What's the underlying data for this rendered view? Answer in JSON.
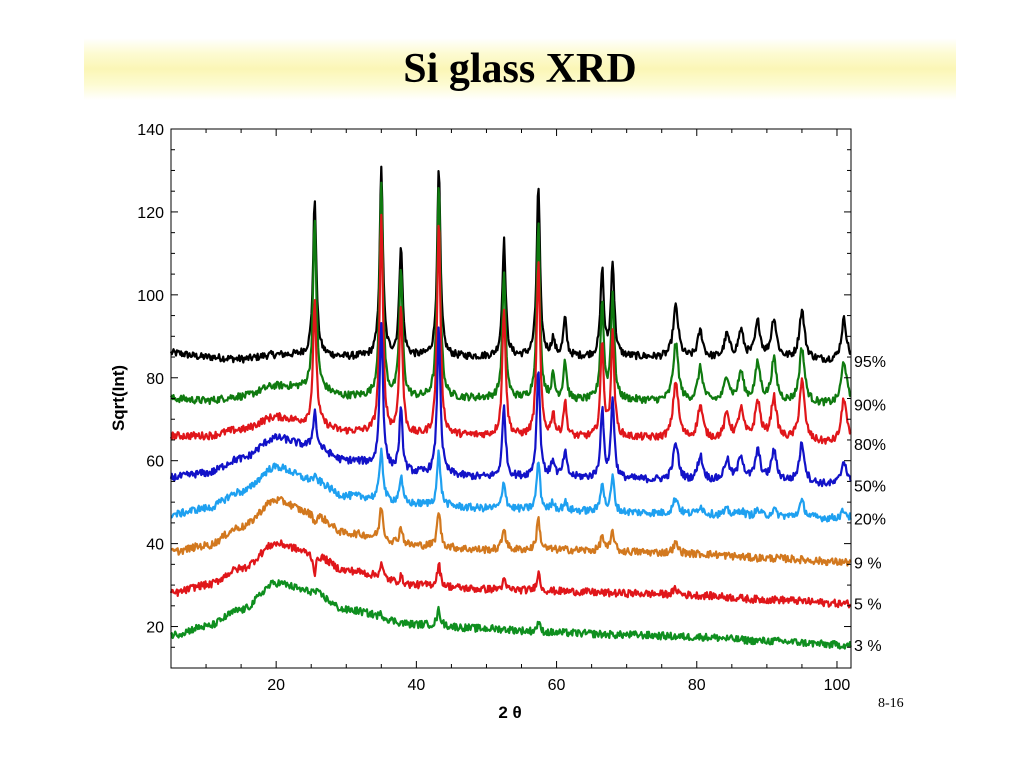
{
  "slide": {
    "title": "Si glass XRD",
    "page_number": "8-16"
  },
  "chart_data": {
    "type": "line",
    "title": "",
    "xlabel": "2 θ",
    "ylabel": "Sqrt(Int)",
    "xlim": [
      5,
      102
    ],
    "ylim": [
      10,
      140
    ],
    "x_ticks": [
      20,
      40,
      60,
      80,
      100
    ],
    "y_ticks": [
      20,
      40,
      60,
      80,
      100,
      120,
      140
    ],
    "grid": false,
    "legend": "right, labels at the end of each trace",
    "peak_positions": [
      25.5,
      35.0,
      37.8,
      43.2,
      52.5,
      57.4,
      59.5,
      61.2,
      66.5,
      68.0,
      77.0,
      80.5,
      84.3,
      86.3,
      88.7,
      91.0,
      95.0,
      101.0
    ],
    "series": [
      {
        "name": "95%",
        "color": "#000000",
        "x": [
          5,
          10,
          15,
          20,
          25,
          30,
          40,
          50,
          60,
          70,
          80,
          90,
          102
        ],
        "y": [
          86,
          85,
          84.5,
          85.5,
          85.5,
          85,
          85,
          85,
          85,
          85,
          84.5,
          84.5,
          84
        ],
        "peaks": [
          [
            25.5,
            123
          ],
          [
            35.0,
            130
          ],
          [
            37.8,
            112
          ],
          [
            43.2,
            130
          ],
          [
            52.5,
            113
          ],
          [
            57.4,
            126
          ],
          [
            59.5,
            89
          ],
          [
            61.2,
            94
          ],
          [
            66.5,
            106
          ],
          [
            68.0,
            108
          ],
          [
            77.0,
            97
          ],
          [
            80.5,
            91
          ],
          [
            84.3,
            90
          ],
          [
            86.3,
            91
          ],
          [
            88.7,
            93
          ],
          [
            91.0,
            94
          ],
          [
            95.0,
            96
          ],
          [
            101.0,
            94
          ]
        ]
      },
      {
        "name": "90%",
        "color": "#0f7a0f",
        "x": [
          5,
          10,
          15,
          20,
          25,
          30,
          40,
          50,
          60,
          70,
          80,
          90,
          102
        ],
        "y": [
          75,
          74.5,
          75.5,
          78,
          77.5,
          75.5,
          75,
          75,
          74.5,
          74.5,
          74,
          74,
          73.5
        ],
        "peaks": [
          [
            25.5,
            118
          ],
          [
            35.0,
            127
          ],
          [
            37.8,
            106
          ],
          [
            43.2,
            126
          ],
          [
            52.5,
            105
          ],
          [
            57.4,
            117
          ],
          [
            59.5,
            80
          ],
          [
            61.2,
            84
          ],
          [
            66.5,
            98
          ],
          [
            68.0,
            100
          ],
          [
            77.0,
            88
          ],
          [
            80.5,
            82
          ],
          [
            84.3,
            80
          ],
          [
            86.3,
            81
          ],
          [
            88.7,
            83
          ],
          [
            91.0,
            84
          ],
          [
            95.0,
            87
          ],
          [
            101.0,
            84
          ]
        ]
      },
      {
        "name": "80%",
        "color": "#e0161a",
        "x": [
          5,
          10,
          15,
          20,
          25,
          30,
          40,
          50,
          60,
          70,
          80,
          90,
          102
        ],
        "y": [
          66,
          66,
          67.5,
          70.5,
          69,
          67,
          66,
          66,
          65.5,
          65.5,
          65,
          65,
          64
        ],
        "peaks": [
          [
            25.5,
            98
          ],
          [
            35.0,
            118
          ],
          [
            37.8,
            97
          ],
          [
            43.2,
            118
          ],
          [
            52.5,
            97
          ],
          [
            57.4,
            108
          ],
          [
            59.5,
            71
          ],
          [
            61.2,
            74
          ],
          [
            66.5,
            88
          ],
          [
            68.0,
            90
          ],
          [
            77.0,
            79
          ],
          [
            80.5,
            73
          ],
          [
            84.3,
            71
          ],
          [
            86.3,
            72
          ],
          [
            88.7,
            74
          ],
          [
            91.0,
            75
          ],
          [
            95.0,
            79
          ],
          [
            101.0,
            75
          ]
        ]
      },
      {
        "name": "50%",
        "color": "#1212c8",
        "x": [
          5,
          10,
          15,
          20,
          25,
          30,
          40,
          50,
          60,
          70,
          80,
          90,
          102
        ],
        "y": [
          56,
          57,
          60.5,
          65.5,
          63.5,
          60,
          57,
          56,
          56,
          55.5,
          55,
          55,
          54
        ],
        "peaks": [
          [
            25.5,
            72
          ],
          [
            35.0,
            93
          ],
          [
            37.8,
            72
          ],
          [
            43.2,
            92
          ],
          [
            52.5,
            73
          ],
          [
            57.4,
            82
          ],
          [
            59.5,
            60
          ],
          [
            61.2,
            62
          ],
          [
            66.5,
            72
          ],
          [
            68.0,
            75
          ],
          [
            77.0,
            64
          ],
          [
            80.5,
            61
          ],
          [
            84.3,
            60
          ],
          [
            86.3,
            61
          ],
          [
            88.7,
            62
          ],
          [
            91.0,
            62
          ],
          [
            95.0,
            64
          ],
          [
            101.0,
            60
          ]
        ]
      },
      {
        "name": "20%",
        "color": "#1ea0f0",
        "x": [
          5,
          10,
          15,
          20,
          25,
          30,
          40,
          50,
          60,
          70,
          80,
          90,
          102
        ],
        "y": [
          47,
          48.5,
          52.5,
          58.5,
          55.5,
          51.5,
          49.5,
          48.5,
          48,
          47.5,
          47,
          46.5,
          46
        ],
        "peaks": [
          [
            25.5,
            56
          ],
          [
            35.0,
            63
          ],
          [
            37.8,
            56
          ],
          [
            43.2,
            62
          ],
          [
            52.5,
            55
          ],
          [
            57.4,
            60
          ],
          [
            59.5,
            50
          ],
          [
            61.2,
            50
          ],
          [
            66.5,
            55
          ],
          [
            68.0,
            56
          ],
          [
            77.0,
            51
          ],
          [
            80.5,
            49
          ],
          [
            84.3,
            48
          ],
          [
            86.3,
            48
          ],
          [
            88.7,
            48
          ],
          [
            91.0,
            48
          ],
          [
            95.0,
            50
          ],
          [
            101.0,
            48
          ]
        ]
      },
      {
        "name": "9 %",
        "color": "#d2781e",
        "x": [
          5,
          10,
          15,
          20,
          25,
          30,
          40,
          50,
          60,
          70,
          80,
          90,
          102
        ],
        "y": [
          38,
          39.5,
          44,
          50.5,
          47.5,
          42.5,
          39.5,
          38.5,
          38.5,
          38,
          37.5,
          36.5,
          35.5
        ],
        "peaks": [
          [
            25.5,
            45
          ],
          [
            35.0,
            49
          ],
          [
            37.8,
            44
          ],
          [
            43.2,
            48
          ],
          [
            52.5,
            44
          ],
          [
            57.4,
            46
          ],
          [
            66.5,
            42
          ],
          [
            68.0,
            43
          ],
          [
            77.0,
            40
          ]
        ]
      },
      {
        "name": "5 %",
        "color": "#e0161a",
        "x": [
          5,
          10,
          15,
          20,
          25,
          30,
          40,
          50,
          60,
          70,
          80,
          90,
          102
        ],
        "y": [
          28,
          30,
          34,
          40,
          38,
          33.5,
          30,
          29,
          28.5,
          28,
          27.5,
          26.5,
          25.5
        ],
        "peaks": [
          [
            25.5,
            33
          ],
          [
            35.0,
            35
          ],
          [
            37.8,
            32
          ],
          [
            43.2,
            35
          ],
          [
            52.5,
            31
          ],
          [
            57.4,
            33
          ],
          [
            77.0,
            29
          ]
        ]
      },
      {
        "name": "3 %",
        "color": "#0f8f1f",
        "x": [
          5,
          10,
          15,
          20,
          25,
          30,
          40,
          50,
          60,
          70,
          80,
          90,
          102
        ],
        "y": [
          18,
          20,
          24,
          30.5,
          28.5,
          24,
          20.5,
          19.5,
          18.5,
          18,
          17.5,
          16.5,
          15.5
        ],
        "peaks": [
          [
            35.0,
            23
          ],
          [
            43.2,
            24
          ],
          [
            57.4,
            21
          ]
        ]
      }
    ]
  }
}
